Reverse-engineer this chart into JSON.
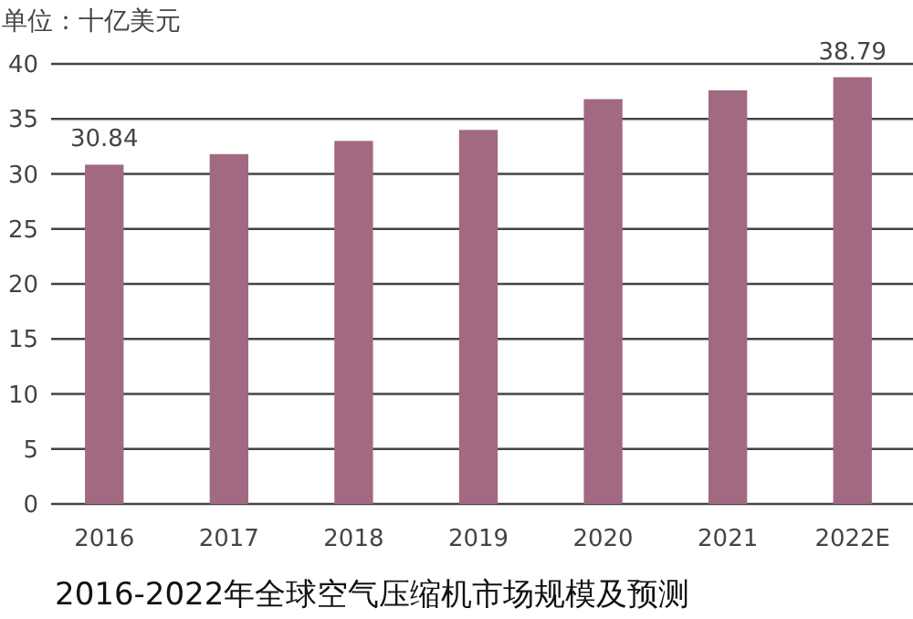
{
  "chart_data": {
    "type": "bar",
    "title": "2016-2022年全球空气压缩机市场规模及预测",
    "ylabel": "单位：十亿美元",
    "categories": [
      "2016",
      "2017",
      "2018",
      "2019",
      "2020",
      "2021",
      "2022E"
    ],
    "values": [
      30.84,
      31.8,
      33.0,
      34.0,
      36.8,
      37.6,
      38.79
    ],
    "value_labels": [
      "30.84",
      null,
      null,
      null,
      null,
      null,
      "38.79"
    ],
    "color": "#a26a82",
    "ylim": [
      0,
      40
    ],
    "yticks": [
      0,
      5,
      10,
      15,
      20,
      25,
      30,
      35,
      40
    ],
    "grid": "y"
  }
}
